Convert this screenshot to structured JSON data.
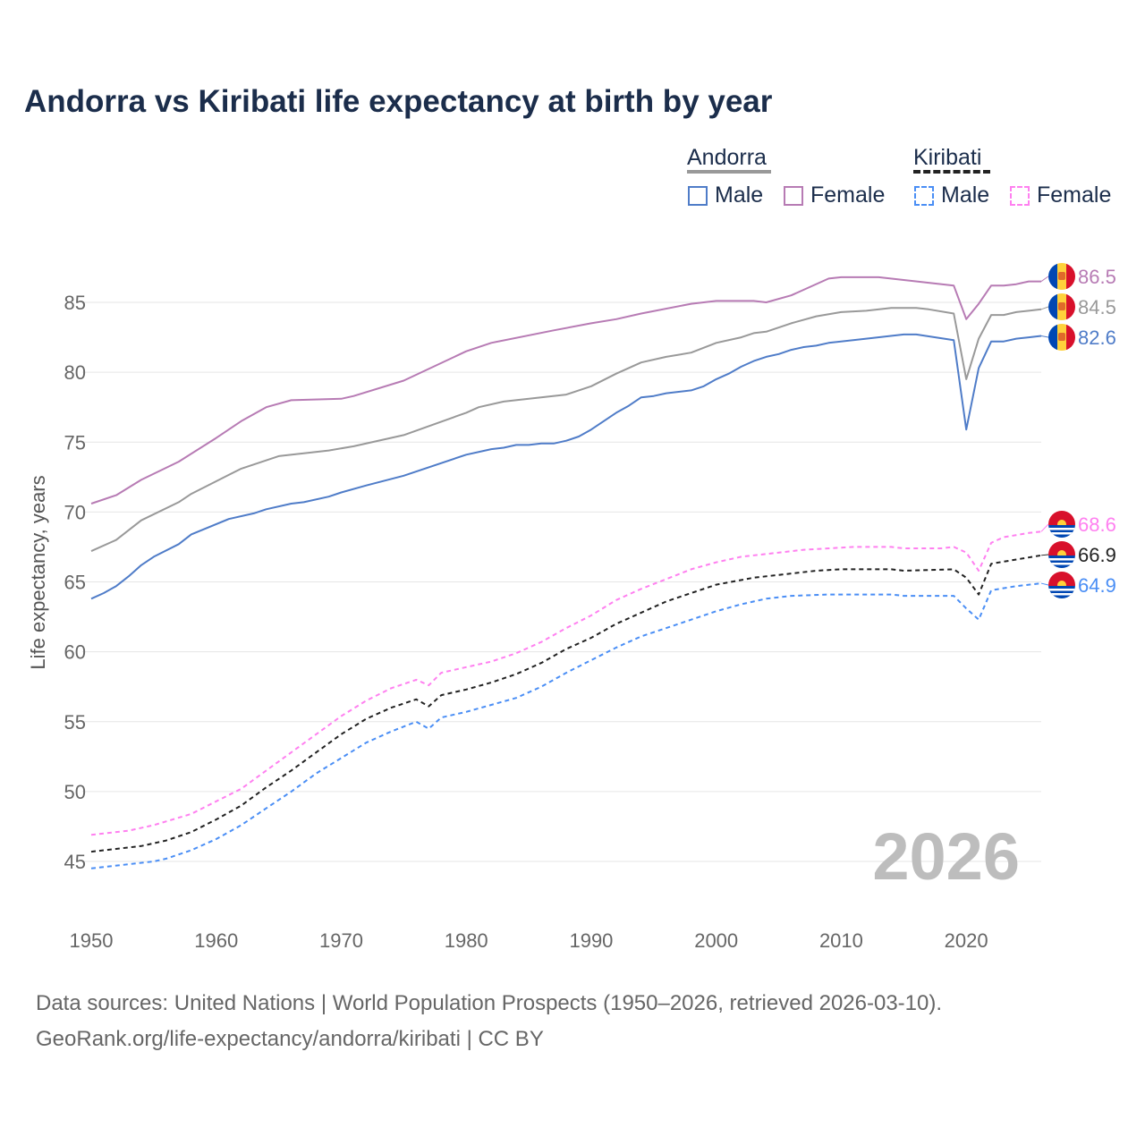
{
  "chart_data": {
    "type": "line",
    "title": "Andorra vs Kiribati life expectancy at birth by year",
    "xlabel": "",
    "ylabel": "Life expectancy, years",
    "xlim": [
      1950,
      2026
    ],
    "ylim": [
      42,
      88
    ],
    "x_ticks": [
      "1950",
      "1960",
      "1970",
      "1980",
      "1990",
      "2000",
      "2010",
      "2020"
    ],
    "y_ticks": [
      "45",
      "50",
      "55",
      "60",
      "65",
      "70",
      "75",
      "80",
      "85"
    ],
    "grid": true,
    "watermark": "2026",
    "legend": {
      "groups": [
        {
          "label": "Andorra",
          "items": [
            "Male",
            "Female"
          ]
        },
        {
          "label": "Kiribati",
          "items": [
            "Male",
            "Female"
          ]
        }
      ],
      "placement": "top-right"
    },
    "series": [
      {
        "name": "Andorra Female",
        "color": "#b77bb4",
        "dashed": false,
        "end_label": "86.5",
        "flag": "andorra",
        "x": [
          1950,
          1952,
          1954,
          1957,
          1960,
          1962,
          1964,
          1966,
          1970,
          1971,
          1975,
          1980,
          1982,
          1987,
          1990,
          1992,
          1994,
          1998,
          2000,
          2003,
          2004,
          2006,
          2009,
          2010,
          2013,
          2015,
          2017,
          2019,
          2020,
          2021,
          2022,
          2023,
          2024,
          2025,
          2026
        ],
        "y": [
          70.6,
          71.2,
          72.3,
          73.6,
          75.3,
          76.5,
          77.5,
          78.0,
          78.1,
          78.3,
          79.4,
          81.5,
          82.1,
          83.0,
          83.5,
          83.8,
          84.2,
          84.9,
          85.1,
          85.1,
          85.0,
          85.5,
          86.7,
          86.8,
          86.8,
          86.6,
          86.4,
          86.2,
          83.8,
          84.9,
          86.2,
          86.2,
          86.3,
          86.5,
          86.5
        ]
      },
      {
        "name": "Andorra Total",
        "color": "#999999",
        "dashed": false,
        "end_label": "84.5",
        "flag": "andorra",
        "x": [
          1950,
          1952,
          1954,
          1957,
          1958,
          1960,
          1962,
          1965,
          1969,
          1971,
          1975,
          1980,
          1981,
          1983,
          1988,
          1990,
          1992,
          1994,
          1996,
          1998,
          2000,
          2002,
          2003,
          2004,
          2006,
          2008,
          2010,
          2012,
          2014,
          2016,
          2017,
          2019,
          2020,
          2021,
          2022,
          2023,
          2024,
          2025,
          2026
        ],
        "y": [
          67.2,
          68.0,
          69.4,
          70.7,
          71.3,
          72.2,
          73.1,
          74.0,
          74.4,
          74.7,
          75.5,
          77.1,
          77.5,
          77.9,
          78.4,
          79.0,
          79.9,
          80.7,
          81.1,
          81.4,
          82.1,
          82.5,
          82.8,
          82.9,
          83.5,
          84.0,
          84.3,
          84.4,
          84.6,
          84.6,
          84.5,
          84.2,
          79.5,
          82.4,
          84.1,
          84.1,
          84.3,
          84.4,
          84.5
        ]
      },
      {
        "name": "Andorra Male",
        "color": "#4f7cc8",
        "dashed": false,
        "end_label": "82.6",
        "flag": "andorra",
        "x": [
          1950,
          1951,
          1952,
          1953,
          1954,
          1955,
          1957,
          1958,
          1961,
          1963,
          1964,
          1966,
          1967,
          1969,
          1970,
          1972,
          1975,
          1980,
          1982,
          1983,
          1984,
          1985,
          1986,
          1987,
          1988,
          1989,
          1990,
          1992,
          1993,
          1994,
          1995,
          1996,
          1998,
          1999,
          2000,
          2001,
          2002,
          2003,
          2004,
          2005,
          2006,
          2007,
          2008,
          2009,
          2012,
          2015,
          2016,
          2019,
          2020,
          2021,
          2022,
          2023,
          2024,
          2025,
          2026
        ],
        "y": [
          63.8,
          64.2,
          64.7,
          65.4,
          66.2,
          66.8,
          67.7,
          68.4,
          69.5,
          69.9,
          70.2,
          70.6,
          70.7,
          71.1,
          71.4,
          71.9,
          72.6,
          74.1,
          74.5,
          74.6,
          74.8,
          74.8,
          74.9,
          74.9,
          75.1,
          75.4,
          75.9,
          77.1,
          77.6,
          78.2,
          78.3,
          78.5,
          78.7,
          79.0,
          79.5,
          79.9,
          80.4,
          80.8,
          81.1,
          81.3,
          81.6,
          81.8,
          81.9,
          82.1,
          82.4,
          82.7,
          82.7,
          82.3,
          75.9,
          80.3,
          82.2,
          82.2,
          82.4,
          82.5,
          82.6
        ]
      },
      {
        "name": "Kiribati Female",
        "color": "#ff80f0",
        "dashed": true,
        "end_label": "68.6",
        "flag": "kiribati",
        "x": [
          1950,
          1953,
          1955,
          1958,
          1960,
          1962,
          1964,
          1966,
          1968,
          1970,
          1972,
          1974,
          1976,
          1977,
          1978,
          1980,
          1982,
          1984,
          1986,
          1988,
          1990,
          1992,
          1994,
          1996,
          1998,
          2000,
          2002,
          2004,
          2007,
          2009,
          2011,
          2014,
          2015,
          2018,
          2019,
          2020,
          2021,
          2022,
          2023,
          2025,
          2026
        ],
        "y": [
          46.9,
          47.2,
          47.6,
          48.4,
          49.3,
          50.2,
          51.5,
          52.8,
          54.1,
          55.4,
          56.5,
          57.4,
          58.0,
          57.6,
          58.5,
          58.9,
          59.3,
          59.9,
          60.7,
          61.7,
          62.6,
          63.7,
          64.5,
          65.2,
          65.9,
          66.4,
          66.8,
          67.0,
          67.3,
          67.4,
          67.5,
          67.5,
          67.4,
          67.4,
          67.5,
          67.1,
          65.8,
          67.8,
          68.2,
          68.5,
          68.6
        ]
      },
      {
        "name": "Kiribati Total",
        "color": "#222222",
        "dashed": true,
        "end_label": "66.9",
        "flag": "kiribati",
        "x": [
          1950,
          1954,
          1956,
          1958,
          1960,
          1962,
          1964,
          1966,
          1968,
          1970,
          1972,
          1974,
          1976,
          1977,
          1978,
          1980,
          1982,
          1984,
          1986,
          1988,
          1990,
          1992,
          1994,
          1996,
          1998,
          2000,
          2003,
          2005,
          2008,
          2010,
          2014,
          2015,
          2019,
          2020,
          2021,
          2022,
          2024,
          2026
        ],
        "y": [
          45.7,
          46.1,
          46.5,
          47.1,
          48.0,
          49.0,
          50.3,
          51.5,
          52.8,
          54.1,
          55.2,
          56.0,
          56.6,
          56.1,
          56.9,
          57.3,
          57.8,
          58.4,
          59.2,
          60.2,
          61.0,
          62.0,
          62.8,
          63.6,
          64.2,
          64.8,
          65.3,
          65.5,
          65.8,
          65.9,
          65.9,
          65.8,
          65.9,
          65.3,
          64.1,
          66.3,
          66.6,
          66.9
        ]
      },
      {
        "name": "Kiribati Male",
        "color": "#4a8ef5",
        "dashed": true,
        "end_label": "64.9",
        "flag": "kiribati",
        "x": [
          1950,
          1955,
          1956,
          1958,
          1960,
          1962,
          1964,
          1966,
          1968,
          1970,
          1972,
          1974,
          1976,
          1977,
          1978,
          1980,
          1982,
          1984,
          1986,
          1988,
          1990,
          1992,
          1994,
          1996,
          1998,
          2000,
          2002,
          2004,
          2006,
          2009,
          2014,
          2015,
          2019,
          2020,
          2021,
          2022,
          2024,
          2026
        ],
        "y": [
          44.5,
          45.0,
          45.2,
          45.8,
          46.6,
          47.6,
          48.8,
          50.0,
          51.3,
          52.4,
          53.5,
          54.3,
          55.0,
          54.5,
          55.3,
          55.7,
          56.2,
          56.7,
          57.5,
          58.5,
          59.4,
          60.3,
          61.1,
          61.7,
          62.3,
          62.9,
          63.4,
          63.8,
          64.0,
          64.1,
          64.1,
          64.0,
          64.0,
          63.1,
          62.3,
          64.4,
          64.7,
          64.9
        ]
      }
    ]
  },
  "source": {
    "line1": "Data sources: United Nations | World Population Prospects (1950–2026, retrieved 2026-03-10).",
    "line2": "GeoRank.org/life-expectancy/andorra/kiribati | CC BY"
  }
}
